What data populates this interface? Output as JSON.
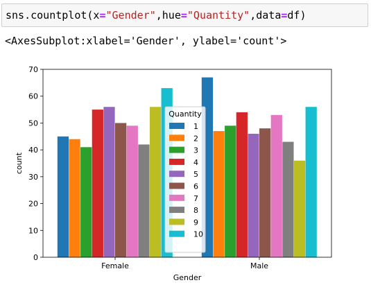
{
  "cell": {
    "code_parts": [
      {
        "text": "sns.countplot(x",
        "cls": ""
      },
      {
        "text": "=",
        "cls": "tok-op"
      },
      {
        "text": "\"Gender\"",
        "cls": "tok-str"
      },
      {
        "text": ",hue",
        "cls": ""
      },
      {
        "text": "=",
        "cls": "tok-op"
      },
      {
        "text": "\"Quantity\"",
        "cls": "tok-str"
      },
      {
        "text": ",data",
        "cls": ""
      },
      {
        "text": "=",
        "cls": "tok-op"
      },
      {
        "text": "df)",
        "cls": ""
      }
    ],
    "output_text": "<AxesSubplot:xlabel='Gender', ylabel='count'>"
  },
  "chart_data": {
    "type": "bar",
    "categories": [
      "Female",
      "Male"
    ],
    "xlabel": "Gender",
    "ylabel": "count",
    "ylim": [
      0,
      70
    ],
    "yticks": [
      0,
      10,
      20,
      30,
      40,
      50,
      60,
      70
    ],
    "legend_title": "Quantity",
    "legend_position": "center",
    "grid": false,
    "series": [
      {
        "name": "1",
        "color": "#1f77b4",
        "values": [
          45,
          67
        ]
      },
      {
        "name": "2",
        "color": "#ff7f0e",
        "values": [
          44,
          47
        ]
      },
      {
        "name": "3",
        "color": "#2ca02c",
        "values": [
          41,
          49
        ]
      },
      {
        "name": "4",
        "color": "#d62728",
        "values": [
          55,
          54
        ]
      },
      {
        "name": "5",
        "color": "#9467bd",
        "values": [
          56,
          46
        ]
      },
      {
        "name": "6",
        "color": "#8c564b",
        "values": [
          50,
          48
        ]
      },
      {
        "name": "7",
        "color": "#e377c2",
        "values": [
          49,
          53
        ]
      },
      {
        "name": "8",
        "color": "#7f7f7f",
        "values": [
          42,
          43
        ]
      },
      {
        "name": "9",
        "color": "#bcbd22",
        "values": [
          56,
          36
        ]
      },
      {
        "name": "10",
        "color": "#17becf",
        "values": [
          63,
          56
        ]
      }
    ]
  }
}
